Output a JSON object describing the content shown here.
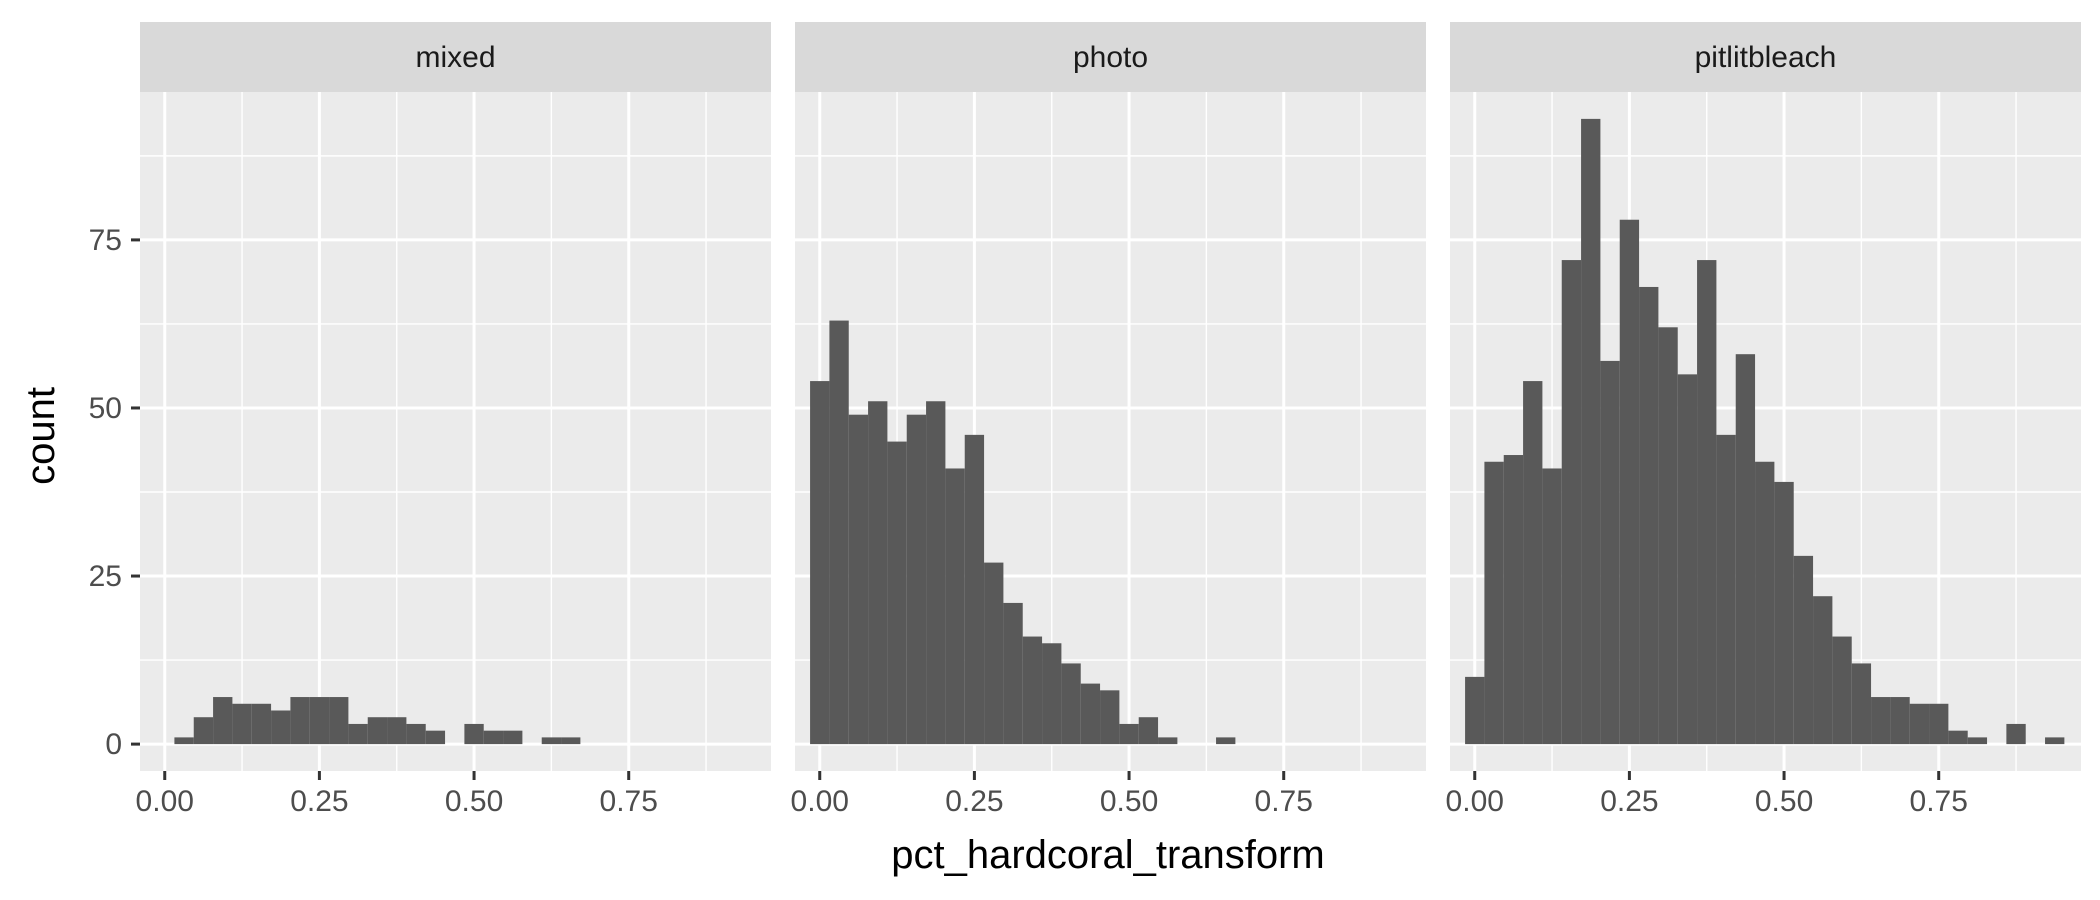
{
  "chart_data": {
    "type": "bar",
    "subtype": "faceted-histogram",
    "xlabel": "pct_hardcoral_transform",
    "ylabel": "count",
    "xlim": [
      -0.04,
      0.98
    ],
    "ylim": [
      -4,
      97
    ],
    "x_ticks": [
      0,
      0.25,
      0.5,
      0.75
    ],
    "x_tick_labels": [
      "0.00",
      "0.25",
      "0.50",
      "0.75"
    ],
    "y_ticks": [
      0,
      25,
      50,
      75
    ],
    "y_tick_labels": [
      "0",
      "25",
      "50",
      "75"
    ],
    "grid": true,
    "bin_width": 0.03125,
    "bin_centers": [
      0,
      0.03125,
      0.0625,
      0.09375,
      0.125,
      0.15625,
      0.1875,
      0.21875,
      0.25,
      0.28125,
      0.3125,
      0.34375,
      0.375,
      0.40625,
      0.4375,
      0.46875,
      0.5,
      0.53125,
      0.5625,
      0.59375,
      0.625,
      0.65625,
      0.6875,
      0.71875,
      0.75,
      0.78125,
      0.8125,
      0.84375,
      0.875,
      0.90625,
      0.9375
    ],
    "facets": [
      {
        "label": "mixed",
        "counts": [
          0,
          1,
          4,
          7,
          6,
          6,
          5,
          7,
          7,
          7,
          3,
          4,
          4,
          3,
          2,
          0,
          3,
          2,
          2,
          0,
          1,
          1,
          0,
          0,
          0,
          0,
          0,
          0,
          0,
          0,
          0
        ]
      },
      {
        "label": "photo",
        "counts": [
          54,
          63,
          49,
          51,
          45,
          49,
          51,
          41,
          46,
          27,
          21,
          16,
          15,
          12,
          9,
          8,
          3,
          4,
          1,
          0,
          0,
          1,
          0,
          0,
          0,
          0,
          0,
          0,
          0,
          0,
          0
        ]
      },
      {
        "label": "pitlitbleach",
        "counts": [
          10,
          42,
          43,
          54,
          41,
          72,
          93,
          57,
          78,
          68,
          62,
          55,
          72,
          46,
          58,
          42,
          39,
          28,
          22,
          16,
          12,
          7,
          7,
          6,
          6,
          2,
          1,
          0,
          3,
          0,
          1
        ]
      }
    ]
  }
}
